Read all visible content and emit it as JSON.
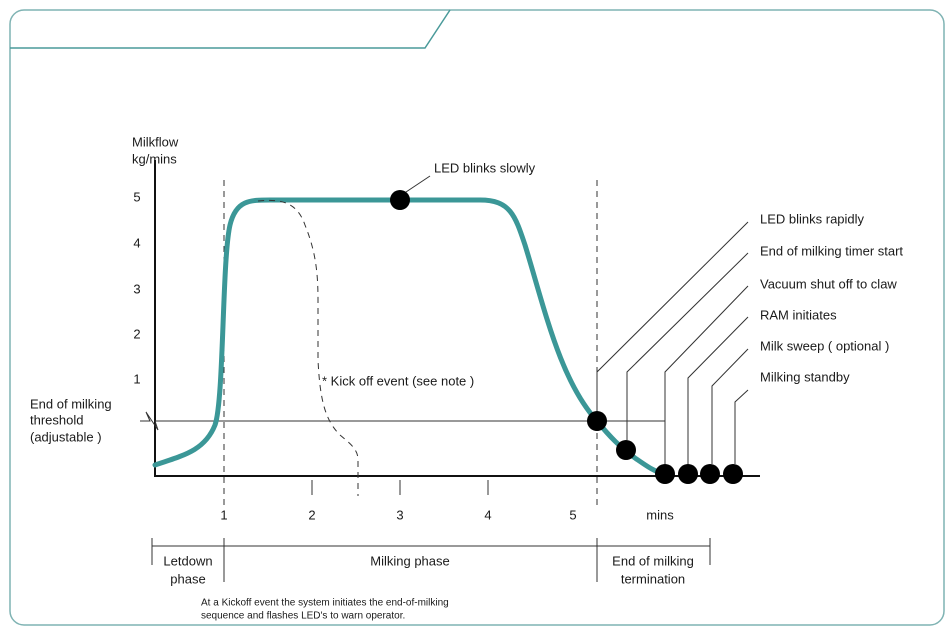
{
  "y_axis": {
    "label": [
      "Milkflow",
      "kg/mins"
    ],
    "ticks": [
      1,
      2,
      3,
      4,
      5
    ]
  },
  "x_axis": {
    "ticks": [
      1,
      2,
      3,
      4,
      5
    ],
    "unit": "mins"
  },
  "threshold_label": [
    "End of milking",
    "threshold",
    "(adjustable )"
  ],
  "annotations": {
    "led_slow": "LED blinks slowly",
    "kickoff": "* Kick off event (see note )"
  },
  "events": [
    "LED blinks rapidly",
    "End of milking timer start",
    "Vacuum shut off to claw",
    "RAM initiates",
    "Milk sweep ( optional )",
    "Milking standby"
  ],
  "phases": {
    "letdown": [
      "Letdown",
      "phase"
    ],
    "milking": "Milking phase",
    "termination": [
      "End of milking",
      "termination"
    ]
  },
  "note": [
    "At a Kickoff event the system initiates the end-of-milking",
    "sequence and flashes LED's to warn operator."
  ]
}
